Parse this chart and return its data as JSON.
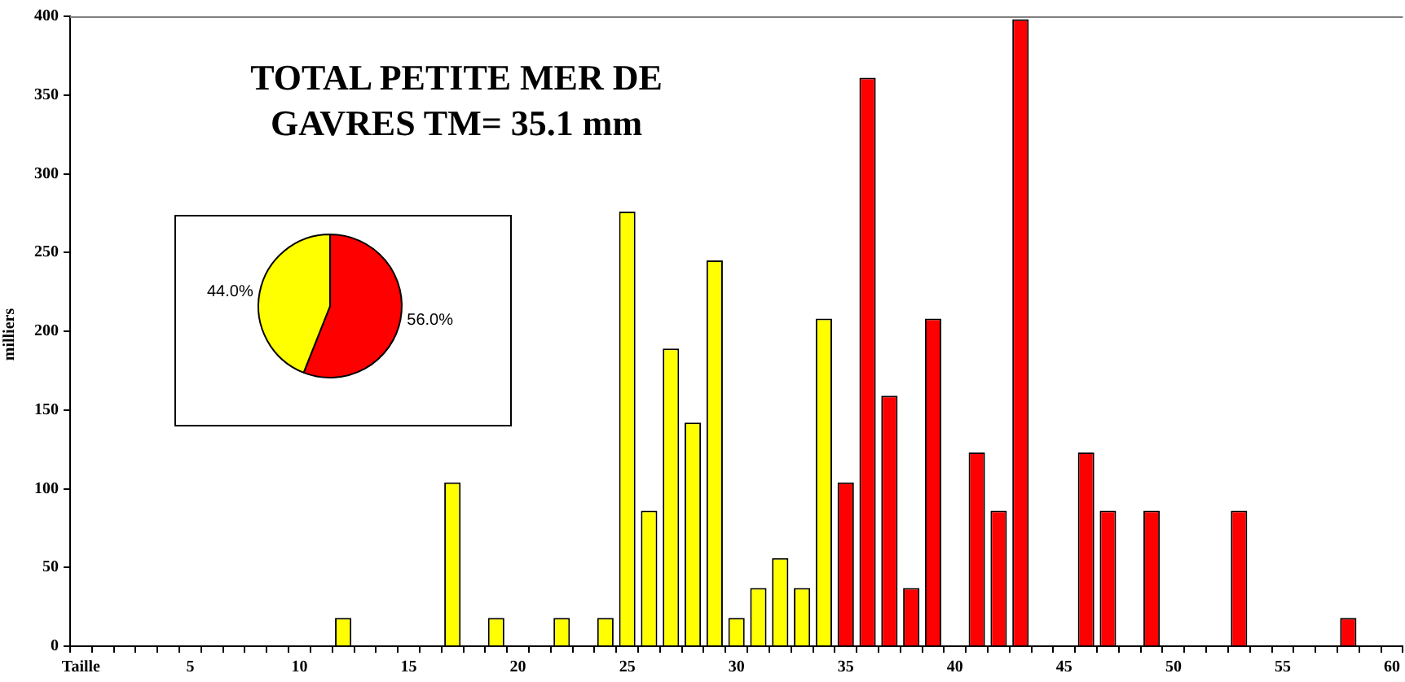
{
  "chart_data": [
    {
      "type": "bar",
      "title": "TOTAL PETITE MER DE\nGAVRES TM= 35.1 mm",
      "ylabel": "milliers",
      "categories": [
        "Taille",
        null,
        null,
        null,
        null,
        "5",
        null,
        null,
        null,
        null,
        "10",
        null,
        null,
        null,
        null,
        "15",
        null,
        null,
        null,
        null,
        "20",
        null,
        null,
        null,
        null,
        "25",
        null,
        null,
        null,
        null,
        "30",
        null,
        null,
        null,
        null,
        "35",
        null,
        null,
        null,
        null,
        "40",
        null,
        null,
        null,
        null,
        "45",
        null,
        null,
        null,
        null,
        "50",
        null,
        null,
        null,
        null,
        "55",
        null,
        null,
        null,
        null,
        "60"
      ],
      "series": [
        {
          "color": "#ffff00",
          "values": [
            null,
            null,
            null,
            null,
            null,
            null,
            null,
            null,
            null,
            null,
            null,
            null,
            18,
            null,
            null,
            null,
            null,
            104,
            null,
            18,
            null,
            null,
            18,
            null,
            18,
            276,
            86,
            189,
            142,
            245,
            18,
            37,
            56,
            37,
            208,
            null,
            null,
            null,
            null,
            null,
            null,
            null,
            null,
            null,
            null,
            null,
            null,
            null,
            null,
            null,
            null,
            null,
            null,
            null,
            null,
            null,
            null,
            null,
            null,
            null,
            null
          ]
        },
        {
          "color": "#ff0000",
          "values": [
            null,
            null,
            null,
            null,
            null,
            null,
            null,
            null,
            null,
            null,
            null,
            null,
            null,
            null,
            null,
            null,
            null,
            null,
            null,
            null,
            null,
            null,
            null,
            null,
            null,
            null,
            null,
            null,
            null,
            null,
            null,
            null,
            null,
            null,
            null,
            104,
            361,
            159,
            37,
            208,
            null,
            123,
            86,
            398,
            null,
            null,
            123,
            86,
            null,
            86,
            null,
            null,
            null,
            86,
            null,
            null,
            null,
            null,
            18,
            null,
            null
          ]
        }
      ],
      "ylim": [
        0,
        400
      ],
      "yticks": [
        0,
        50,
        100,
        150,
        200,
        250,
        300,
        350,
        400
      ],
      "grid": false,
      "legend": false
    },
    {
      "type": "pie",
      "categories": [
        null,
        null
      ],
      "values": [
        56,
        44
      ],
      "colors": [
        "#ff0000",
        "#ffff00"
      ],
      "value_labels": [
        "56.0%",
        "44.0%"
      ],
      "legend": false
    }
  ]
}
